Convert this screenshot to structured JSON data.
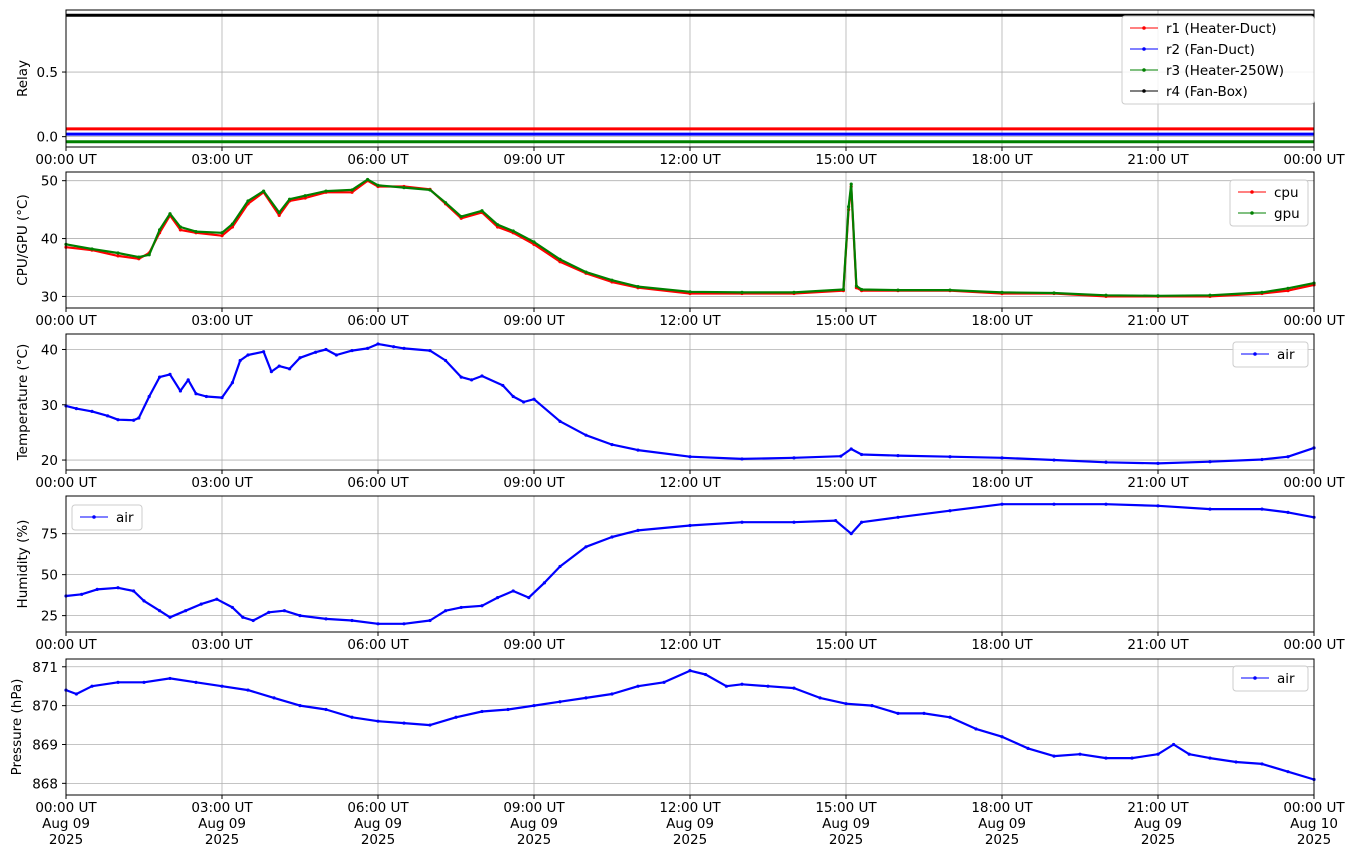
{
  "chart_data": [
    {
      "type": "line",
      "ylabel": "Relay",
      "xlabel": "",
      "ylim": [
        -0.08,
        0.98
      ],
      "yticks": [
        0.0,
        0.5
      ],
      "ytick_labels": [
        "0.0",
        "0.5"
      ],
      "xlim": [
        0,
        24
      ],
      "xticks": [
        0,
        3,
        6,
        9,
        12,
        15,
        18,
        21,
        24
      ],
      "xtick_labels": [
        "00:00 UT",
        "03:00 UT",
        "06:00 UT",
        "09:00 UT",
        "12:00 UT",
        "15:00 UT",
        "18:00 UT",
        "21:00 UT",
        "00:00 UT"
      ],
      "grid": true,
      "legend_position": "top-right",
      "series": [
        {
          "name": "r1 (Heater-Duct)",
          "color": "#ff0000",
          "x": [
            0,
            24
          ],
          "y": [
            0.06,
            0.06
          ]
        },
        {
          "name": "r2 (Fan-Duct)",
          "color": "#0000ff",
          "x": [
            0,
            24
          ],
          "y": [
            0.02,
            0.02
          ]
        },
        {
          "name": "r3 (Heater-250W)",
          "color": "#008000",
          "x": [
            0,
            24
          ],
          "y": [
            -0.04,
            -0.04
          ]
        },
        {
          "name": "r4 (Fan-Box)",
          "color": "#000000",
          "x": [
            0,
            24
          ],
          "y": [
            0.94,
            0.94
          ]
        }
      ]
    },
    {
      "type": "line",
      "ylabel": "CPU/GPU (°C)",
      "xlabel": "",
      "ylim": [
        28,
        51.5
      ],
      "yticks": [
        30,
        40,
        50
      ],
      "ytick_labels": [
        "30",
        "40",
        "50"
      ],
      "xlim": [
        0,
        24
      ],
      "xticks": [
        0,
        3,
        6,
        9,
        12,
        15,
        18,
        21,
        24
      ],
      "xtick_labels": [
        "00:00 UT",
        "03:00 UT",
        "06:00 UT",
        "09:00 UT",
        "12:00 UT",
        "15:00 UT",
        "18:00 UT",
        "21:00 UT",
        "00:00 UT"
      ],
      "grid": true,
      "legend_position": "top-right",
      "series": [
        {
          "name": "cpu",
          "color": "#ff0000",
          "x": [
            0,
            0.5,
            1.0,
            1.4,
            1.6,
            1.8,
            2.0,
            2.2,
            2.5,
            3.0,
            3.2,
            3.5,
            3.8,
            4.1,
            4.3,
            4.6,
            5.0,
            5.5,
            5.8,
            6.0,
            6.5,
            7.0,
            7.3,
            7.6,
            8.0,
            8.3,
            8.6,
            9.0,
            9.5,
            10.0,
            10.5,
            11.0,
            12.0,
            13.0,
            14.0,
            14.95,
            15.05,
            15.1,
            15.2,
            15.3,
            16.0,
            17.0,
            18.0,
            19.0,
            20.0,
            21.0,
            22.0,
            23.0,
            23.5,
            24.0
          ],
          "y": [
            38.5,
            38,
            37,
            36.5,
            37.5,
            41,
            44,
            41.5,
            41,
            40.5,
            42,
            46,
            48,
            44,
            46.5,
            47,
            48,
            48,
            50,
            49,
            49,
            48.5,
            46,
            43.5,
            44.5,
            42,
            41,
            39,
            36,
            34,
            32.5,
            31.5,
            30.5,
            30.5,
            30.5,
            31,
            45,
            49,
            31.5,
            31,
            31,
            31,
            30.5,
            30.5,
            30,
            30,
            30,
            30.5,
            31,
            32
          ]
        },
        {
          "name": "gpu",
          "color": "#008000",
          "x": [
            0,
            0.5,
            1.0,
            1.4,
            1.6,
            1.8,
            2.0,
            2.2,
            2.5,
            3.0,
            3.2,
            3.5,
            3.8,
            4.1,
            4.3,
            4.6,
            5.0,
            5.5,
            5.8,
            6.0,
            6.5,
            7.0,
            7.3,
            7.6,
            8.0,
            8.3,
            8.6,
            9.0,
            9.5,
            10.0,
            10.5,
            11.0,
            12.0,
            13.0,
            14.0,
            14.95,
            15.05,
            15.1,
            15.2,
            15.3,
            16.0,
            17.0,
            18.0,
            19.0,
            20.0,
            21.0,
            22.0,
            23.0,
            23.5,
            24.0
          ],
          "y": [
            39,
            38.2,
            37.5,
            36.8,
            37.2,
            41.5,
            44.3,
            42,
            41.2,
            41,
            42.5,
            46.5,
            48.2,
            44.5,
            46.8,
            47.4,
            48.2,
            48.4,
            50.2,
            49.2,
            48.8,
            48.4,
            46.2,
            43.8,
            44.8,
            42.4,
            41.3,
            39.4,
            36.4,
            34.2,
            32.8,
            31.7,
            30.8,
            30.7,
            30.7,
            31.2,
            45.5,
            49.4,
            31.8,
            31.2,
            31.1,
            31.1,
            30.7,
            30.6,
            30.2,
            30.1,
            30.2,
            30.7,
            31.4,
            32.3
          ]
        }
      ]
    },
    {
      "type": "line",
      "ylabel": "Temperature (°C)",
      "xlabel": "",
      "ylim": [
        18.2,
        42.8
      ],
      "yticks": [
        20,
        30,
        40
      ],
      "ytick_labels": [
        "20",
        "30",
        "40"
      ],
      "xlim": [
        0,
        24
      ],
      "xticks": [
        0,
        3,
        6,
        9,
        12,
        15,
        18,
        21,
        24
      ],
      "xtick_labels": [
        "00:00 UT",
        "03:00 UT",
        "06:00 UT",
        "09:00 UT",
        "12:00 UT",
        "15:00 UT",
        "18:00 UT",
        "21:00 UT",
        "00:00 UT"
      ],
      "grid": true,
      "legend_position": "top-right",
      "series": [
        {
          "name": "air",
          "color": "#0000ff",
          "x": [
            0,
            0.2,
            0.5,
            0.8,
            1.0,
            1.3,
            1.4,
            1.6,
            1.8,
            2.0,
            2.2,
            2.35,
            2.5,
            2.7,
            3.0,
            3.2,
            3.35,
            3.5,
            3.8,
            3.95,
            4.1,
            4.3,
            4.5,
            4.8,
            5.0,
            5.2,
            5.5,
            5.8,
            6.0,
            6.3,
            6.5,
            7.0,
            7.3,
            7.6,
            7.8,
            8.0,
            8.4,
            8.6,
            8.8,
            9.0,
            9.5,
            10.0,
            10.5,
            11.0,
            12.0,
            13.0,
            14.0,
            14.9,
            15.1,
            15.3,
            16.0,
            17.0,
            18.0,
            19.0,
            20.0,
            21.0,
            22.0,
            23.0,
            23.5,
            24.0
          ],
          "y": [
            29.8,
            29.3,
            28.8,
            28.0,
            27.3,
            27.2,
            27.6,
            31.5,
            35.0,
            35.5,
            32.5,
            34.5,
            32.0,
            31.5,
            31.3,
            34.0,
            38.0,
            39.0,
            39.6,
            36.0,
            37.0,
            36.5,
            38.5,
            39.5,
            40.0,
            39.0,
            39.8,
            40.2,
            41.0,
            40.5,
            40.2,
            39.8,
            38.0,
            35.0,
            34.5,
            35.2,
            33.5,
            31.5,
            30.5,
            31.0,
            27.0,
            24.5,
            22.8,
            21.8,
            20.6,
            20.2,
            20.4,
            20.7,
            22.0,
            21.0,
            20.8,
            20.6,
            20.4,
            20.0,
            19.6,
            19.4,
            19.7,
            20.1,
            20.6,
            22.2
          ]
        }
      ]
    },
    {
      "type": "line",
      "ylabel": "Humidity (%)",
      "xlabel": "",
      "ylim": [
        15,
        98
      ],
      "yticks": [
        25,
        50,
        75
      ],
      "ytick_labels": [
        "25",
        "50",
        "75"
      ],
      "xlim": [
        0,
        24
      ],
      "xticks": [
        0,
        3,
        6,
        9,
        12,
        15,
        18,
        21,
        24
      ],
      "xtick_labels": [
        "00:00 UT",
        "03:00 UT",
        "06:00 UT",
        "09:00 UT",
        "12:00 UT",
        "15:00 UT",
        "18:00 UT",
        "21:00 UT",
        "00:00 UT"
      ],
      "grid": true,
      "legend_position": "top-left",
      "series": [
        {
          "name": "air",
          "color": "#0000ff",
          "x": [
            0,
            0.3,
            0.6,
            1.0,
            1.3,
            1.5,
            1.8,
            2.0,
            2.3,
            2.6,
            2.9,
            3.2,
            3.4,
            3.6,
            3.9,
            4.2,
            4.5,
            5.0,
            5.5,
            6.0,
            6.5,
            7.0,
            7.3,
            7.6,
            8.0,
            8.3,
            8.6,
            8.9,
            9.2,
            9.5,
            10.0,
            10.5,
            11.0,
            12.0,
            13.0,
            14.0,
            14.8,
            15.1,
            15.3,
            16.0,
            17.0,
            18.0,
            19.0,
            20.0,
            21.0,
            22.0,
            23.0,
            23.5,
            24.0
          ],
          "y": [
            37,
            38,
            41,
            42,
            40,
            34,
            28,
            24,
            28,
            32,
            35,
            30,
            24,
            22,
            27,
            28,
            25,
            23,
            22,
            20,
            20,
            22,
            28,
            30,
            31,
            36,
            40,
            36,
            45,
            55,
            67,
            73,
            77,
            80,
            82,
            82,
            83,
            75,
            82,
            85,
            89,
            93,
            93,
            93,
            92,
            90,
            90,
            88,
            85
          ]
        }
      ]
    },
    {
      "type": "line",
      "ylabel": "Pressure (hPa)",
      "xlabel": "",
      "ylim": [
        867.7,
        871.2
      ],
      "yticks": [
        868,
        869,
        870,
        871
      ],
      "ytick_labels": [
        "868",
        "869",
        "870",
        "871"
      ],
      "xlim": [
        0,
        24
      ],
      "xticks": [
        0,
        3,
        6,
        9,
        12,
        15,
        18,
        21,
        24
      ],
      "xtick_labels": [
        "00:00 UT\nAug 09\n2025",
        "03:00 UT\nAug 09\n2025",
        "06:00 UT\nAug 09\n2025",
        "09:00 UT\nAug 09\n2025",
        "12:00 UT\nAug 09\n2025",
        "15:00 UT\nAug 09\n2025",
        "18:00 UT\nAug 09\n2025",
        "21:00 UT\nAug 09\n2025",
        "00:00 UT\nAug 10\n2025"
      ],
      "grid": true,
      "legend_position": "top-right",
      "series": [
        {
          "name": "air",
          "color": "#0000ff",
          "x": [
            0,
            0.2,
            0.5,
            1.0,
            1.5,
            2.0,
            2.5,
            3.0,
            3.5,
            4.0,
            4.5,
            5.0,
            5.5,
            6.0,
            6.5,
            7.0,
            7.5,
            8.0,
            8.5,
            9.0,
            9.5,
            10.0,
            10.5,
            11.0,
            11.5,
            12.0,
            12.3,
            12.7,
            13.0,
            13.5,
            14.0,
            14.5,
            15.0,
            15.5,
            16.0,
            16.5,
            17.0,
            17.5,
            18.0,
            18.5,
            19.0,
            19.5,
            20.0,
            20.5,
            21.0,
            21.3,
            21.6,
            22.0,
            22.5,
            23.0,
            23.5,
            24.0
          ],
          "y": [
            870.4,
            870.3,
            870.5,
            870.6,
            870.6,
            870.7,
            870.6,
            870.5,
            870.4,
            870.2,
            870.0,
            869.9,
            869.7,
            869.6,
            869.55,
            869.5,
            869.7,
            869.85,
            869.9,
            870.0,
            870.1,
            870.2,
            870.3,
            870.5,
            870.6,
            870.9,
            870.8,
            870.5,
            870.55,
            870.5,
            870.45,
            870.2,
            870.05,
            870.0,
            869.8,
            869.8,
            869.7,
            869.4,
            869.2,
            868.9,
            868.7,
            868.75,
            868.65,
            868.65,
            868.75,
            869.0,
            868.75,
            868.65,
            868.55,
            868.5,
            868.3,
            868.1
          ]
        }
      ]
    }
  ]
}
